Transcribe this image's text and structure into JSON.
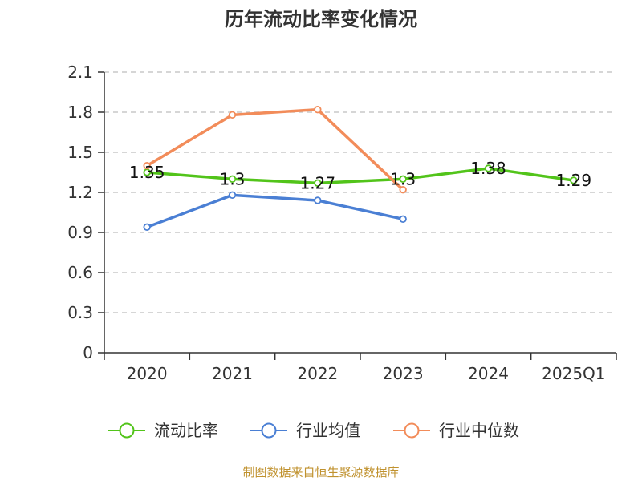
{
  "chart_data": {
    "type": "line",
    "title": "历年流动比率变化情况",
    "categories": [
      "2020",
      "2021",
      "2022",
      "2023",
      "2024",
      "2025Q1"
    ],
    "ylim": [
      0,
      2.1
    ],
    "yticks": [
      "0",
      "0.3",
      "0.6",
      "0.9",
      "1.2",
      "1.5",
      "1.8",
      "2.1"
    ],
    "grid": true,
    "legend_position": "bottom",
    "series": [
      {
        "name": "流动比率",
        "color": "#52c41a",
        "values": [
          1.35,
          1.3,
          1.27,
          1.3,
          1.38,
          1.29
        ],
        "labels": [
          "1.35",
          "1.3",
          "1.27",
          "1.3",
          "1.38",
          "1.29"
        ],
        "show_labels": true
      },
      {
        "name": "行业均值",
        "color": "#4a7fd4",
        "values": [
          0.94,
          1.18,
          1.14,
          1.0,
          null,
          null
        ],
        "show_labels": false
      },
      {
        "name": "行业中位数",
        "color": "#f28c5a",
        "values": [
          1.4,
          1.78,
          1.82,
          1.22,
          null,
          null
        ],
        "show_labels": false
      }
    ]
  },
  "footer": {
    "source": "制图数据来自恒生聚源数据库"
  }
}
